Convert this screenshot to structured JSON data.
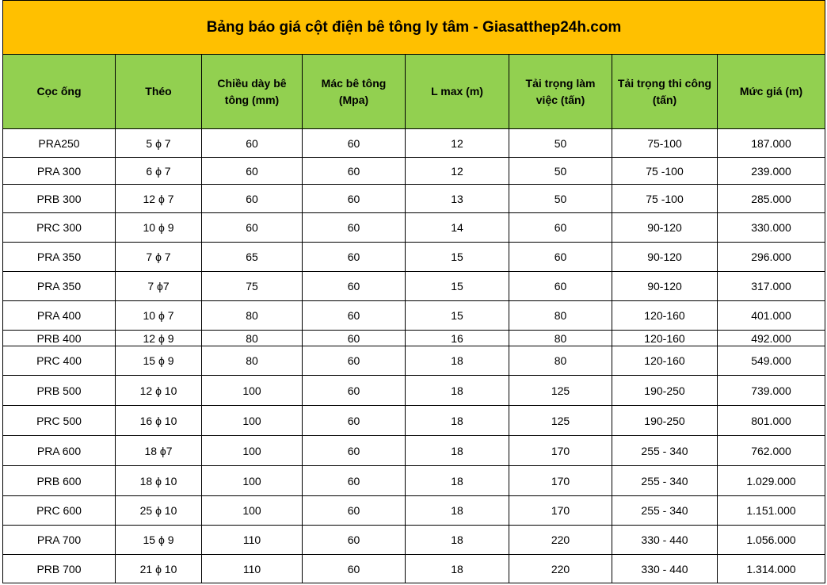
{
  "title": "Bảng báo giá cột điện bê tông ly tâm - Giasatthep24h.com",
  "colors": {
    "title_bg": "#ffc000",
    "header_bg": "#92d050"
  },
  "headers": [
    "Cọc ống",
    "Théo",
    "Chiều dày bê tông (mm)",
    "Mác bê tông (Mpa)",
    "L max (m)",
    "Tải trọng làm việc (tấn)",
    "Tải trọng thi công (tấn)",
    "Mức giá (m)"
  ],
  "rows": [
    [
      "PRA250",
      "5 ϕ 7",
      "60",
      "60",
      "12",
      "50",
      "75-100",
      "187.000"
    ],
    [
      "PRA 300",
      "6 ϕ 7",
      "60",
      "60",
      "12",
      "50",
      "75 -100",
      "239.000"
    ],
    [
      "PRB 300",
      "12 ϕ 7",
      "60",
      "60",
      "13",
      "50",
      "75 -100",
      "285.000"
    ],
    [
      "PRC 300",
      "10 ϕ 9",
      "60",
      "60",
      "14",
      "60",
      "90-120",
      "330.000"
    ],
    [
      "PRA 350",
      "7 ϕ 7",
      "65",
      "60",
      "15",
      "60",
      "90-120",
      "296.000"
    ],
    [
      "PRA 350",
      "7 ϕ7",
      "75",
      "60",
      "15",
      "60",
      "90-120",
      "317.000"
    ],
    [
      "PRA 400",
      "10 ϕ 7",
      "80",
      "60",
      "15",
      "80",
      "120-160",
      "401.000"
    ],
    [
      "PRB 400",
      "12 ϕ 9",
      "80",
      "60",
      "16",
      "80",
      "120-160",
      "492.000"
    ],
    [
      "PRC 400",
      "15 ϕ 9",
      "80",
      "60",
      "18",
      "80",
      "120-160",
      "549.000"
    ],
    [
      "PRB 500",
      "12 ϕ 10",
      "100",
      "60",
      "18",
      "125",
      "190-250",
      "739.000"
    ],
    [
      "PRC 500",
      "16 ϕ 10",
      "100",
      "60",
      "18",
      "125",
      "190-250",
      "801.000"
    ],
    [
      "PRA 600",
      "18 ϕ7",
      "100",
      "60",
      "18",
      "170",
      "255 - 340",
      "762.000"
    ],
    [
      "PRB 600",
      "18 ϕ 10",
      "100",
      "60",
      "18",
      "170",
      "255 - 340",
      "1.029.000"
    ],
    [
      "PRC 600",
      "25 ϕ 10",
      "100",
      "60",
      "18",
      "170",
      "255 - 340",
      "1.151.000"
    ],
    [
      "PRA 700",
      "15 ϕ 9",
      "110",
      "60",
      "18",
      "220",
      "330 - 440",
      "1.056.000"
    ],
    [
      "PRB 700",
      "21 ϕ 10",
      "110",
      "60",
      "18",
      "220",
      "330 - 440",
      "1.314.000"
    ]
  ]
}
